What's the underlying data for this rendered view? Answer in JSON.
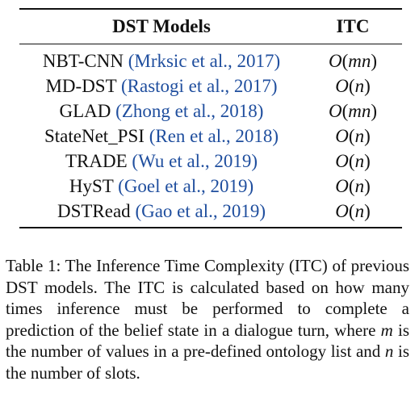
{
  "table": {
    "headers": {
      "model": "DST Models",
      "itc": "ITC"
    },
    "rows": [
      {
        "model": "NBT-CNN",
        "citation": "(Mrksic et al., 2017)",
        "itc_func": "O",
        "itc_arg": "mn"
      },
      {
        "model": "MD-DST",
        "citation": "(Rastogi et al., 2017)",
        "itc_func": "O",
        "itc_arg": "n"
      },
      {
        "model": "GLAD",
        "citation": "(Zhong et al., 2018)",
        "itc_func": "O",
        "itc_arg": "mn"
      },
      {
        "model": "StateNet_PSI",
        "citation": "(Ren et al., 2018)",
        "itc_func": "O",
        "itc_arg": "n"
      },
      {
        "model": "TRADE",
        "citation": "(Wu et al., 2019)",
        "itc_func": "O",
        "itc_arg": "n"
      },
      {
        "model": "HyST",
        "citation": "(Goel et al., 2019)",
        "itc_func": "O",
        "itc_arg": "n"
      },
      {
        "model": "DSTRead",
        "citation": "(Gao et al., 2019)",
        "itc_func": "O",
        "itc_arg": "n"
      }
    ]
  },
  "caption": {
    "part1": "Table 1:  The Inference Time Complexity (ITC) of previous DST models. The ITC is calculated based on how many times inference must be performed to complete a prediction of the belief state in a dialogue turn, where ",
    "var_m": "m",
    "part2": " is the number of values in a pre-defined ontology list and ",
    "var_n": "n",
    "part3": " is the number of slots."
  }
}
